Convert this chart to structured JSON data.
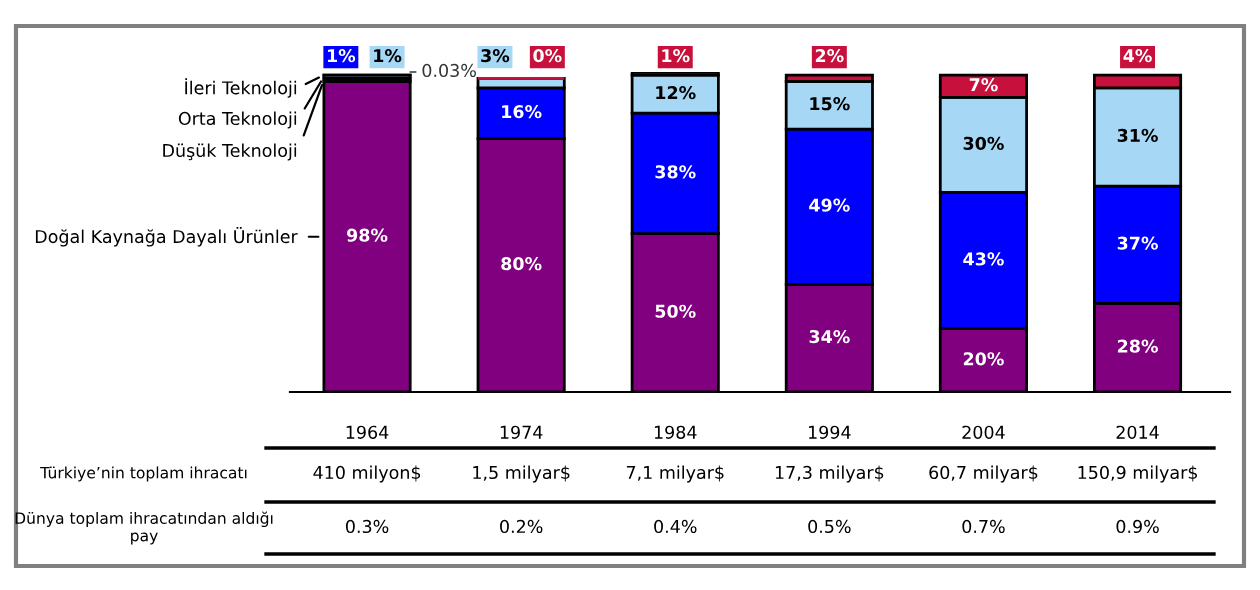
{
  "chart_data": {
    "type": "bar",
    "stacked": true,
    "legend": "left",
    "tick_labels": "x",
    "categories": [
      "1964",
      "1974",
      "1984",
      "1994",
      "2004",
      "2014"
    ],
    "series": [
      {
        "name": "Doğal Kaynağa Dayalı Ürünler",
        "color": "#800080",
        "values": [
          98,
          80,
          50,
          34,
          20,
          28
        ],
        "value_labels": [
          "98%",
          "80%",
          "50%",
          "34%",
          "20%",
          "28%"
        ]
      },
      {
        "name": "Düşük Teknoloji",
        "color": "#0000ff",
        "values": [
          1,
          16,
          38,
          49,
          43,
          37
        ],
        "value_labels": [
          "1%",
          "16%",
          "38%",
          "49%",
          "43%",
          "37%"
        ]
      },
      {
        "name": "Orta Teknoloji",
        "color": "#a6d8f5",
        "values": [
          1,
          3,
          12,
          15,
          30,
          31
        ],
        "value_labels": [
          "1%",
          "3%",
          "12%",
          "15%",
          "30%",
          "31%"
        ]
      },
      {
        "name": "İleri Teknoloji",
        "color": "#c8103c",
        "values": [
          0.03,
          0,
          1,
          2,
          7,
          4
        ],
        "value_labels": [
          "0.03%",
          "0%",
          "1%",
          "2%",
          "7%",
          "4%"
        ]
      }
    ],
    "annotations": [
      "Türkiye’nin toplam ihracatı",
      "410 milyon$",
      "1,5 milyar$",
      "7,1 milyar$",
      "17,3 milyar$",
      "60,7 milyar$",
      "150,9 milyar$",
      "Dünya toplam ihracatından aldığı pay",
      "0.3%",
      "0.2%",
      "0.4%",
      "0.5%",
      "0.7%",
      "0.9%"
    ]
  }
}
